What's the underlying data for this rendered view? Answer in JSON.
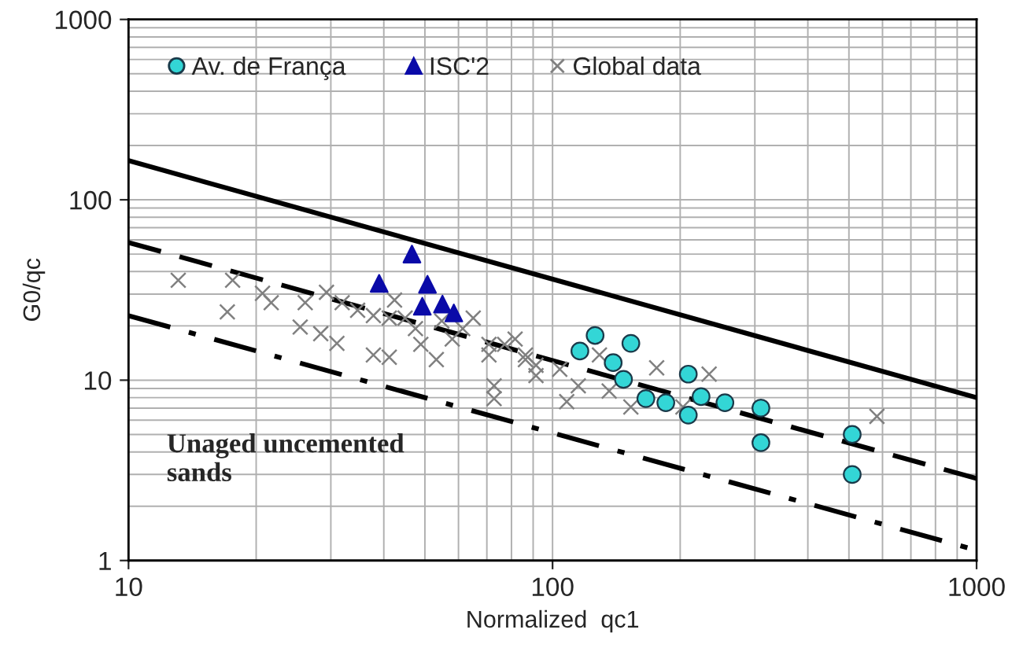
{
  "chart_data": {
    "type": "scatter",
    "xlabel": "Normalized  qc1",
    "ylabel": "G0/qc",
    "log": "xy",
    "xlim": [
      10,
      1000
    ],
    "ylim": [
      1,
      1000
    ],
    "xticks": [
      10,
      100,
      1000
    ],
    "yticks": [
      1,
      10,
      100,
      1000
    ],
    "grid": true,
    "legend": "top left",
    "annotations": [
      "Unaged uncemented\nsands"
    ],
    "series": [
      {
        "type": "line",
        "color": "#000000",
        "line_style": "solid",
        "x": [
          10,
          1000
        ],
        "values": [
          165,
          8
        ]
      },
      {
        "type": "line",
        "color": "#000000",
        "line_style": "dashed",
        "x": [
          10,
          1000
        ],
        "values": [
          58,
          2.85
        ]
      },
      {
        "type": "line",
        "color": "#000000",
        "line_style": "dashdot",
        "x": [
          10,
          1000
        ],
        "values": [
          22.8,
          1.14
        ]
      },
      {
        "name": "Global data",
        "color": "#808080",
        "marker": "cross",
        "x": [
          13.1,
          17.6,
          17.1,
          20.7,
          21.7,
          25.4,
          28.4,
          31.0,
          37.8,
          41.2,
          26.1,
          29.3,
          31.9,
          34.7,
          37.8,
          42.4,
          44.9,
          48.9,
          53.2,
          61.4,
          65.0,
          70.8,
          72.8,
          81.6,
          86.3,
          91.4,
          41.2,
          47.5,
          58.0,
          70.8,
          77.1,
          86.3,
          91.4,
          72.8,
          108,
          129,
          153,
          176,
          234,
          203,
          582,
          115,
          136,
          54.8,
          104
        ],
        "values": [
          35.8,
          35.8,
          23.9,
          30.3,
          26.9,
          19.7,
          18.1,
          16.0,
          13.8,
          13.4,
          26.9,
          30.7,
          26.9,
          24.4,
          22.8,
          27.8,
          22.1,
          15.8,
          13.0,
          19.3,
          22.1,
          15.8,
          9.3,
          16.9,
          13.8,
          12.1,
          22.1,
          19.3,
          16.9,
          13.8,
          15.8,
          13.0,
          10.6,
          7.9,
          7.6,
          13.8,
          7.1,
          11.7,
          10.8,
          7.1,
          6.3,
          9.3,
          8.7,
          21.3,
          11.5
        ]
      },
      {
        "name": "Av. de França",
        "color": "#33d6d6",
        "marker": "circle",
        "x": [
          126,
          116,
          153,
          139,
          147,
          166,
          185,
          209,
          224,
          255,
          209,
          310,
          310,
          509,
          509
        ],
        "values": [
          17.7,
          14.5,
          16.0,
          12.5,
          10.1,
          7.9,
          7.5,
          10.8,
          8.1,
          7.5,
          6.4,
          7.0,
          4.5,
          5.0,
          3.0
        ]
      },
      {
        "name": "ISC'2",
        "color": "#0a0aa8",
        "marker": "triangle",
        "x": [
          46.6,
          39,
          50.7,
          49.3,
          55,
          58.5
        ],
        "values": [
          50,
          34.4,
          34,
          25.7,
          26.4,
          23.6
        ]
      }
    ],
    "data_labels": false
  }
}
